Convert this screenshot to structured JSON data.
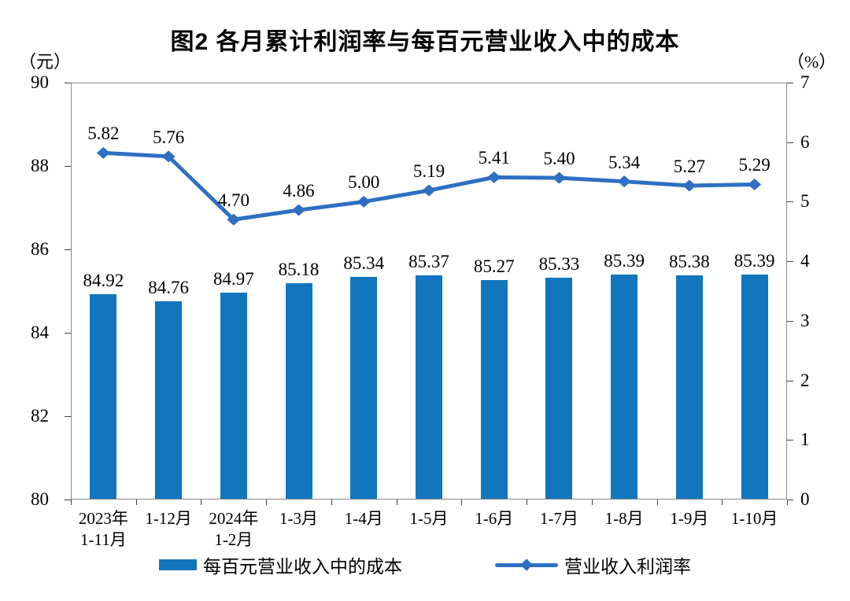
{
  "chart_data": {
    "type": "combo",
    "title": "图2 各月累计利润率与每百元营业收入中的成本",
    "categories": [
      [
        "2023年",
        "1-11月"
      ],
      [
        "1-12月"
      ],
      [
        "2024年",
        "1-2月"
      ],
      [
        "1-3月"
      ],
      [
        "1-4月"
      ],
      [
        "1-5月"
      ],
      [
        "1-6月"
      ],
      [
        "1-7月"
      ],
      [
        "1-8月"
      ],
      [
        "1-9月"
      ],
      [
        "1-10月"
      ]
    ],
    "series": [
      {
        "name": "每百元营业收入中的成本",
        "type": "bar",
        "axis": "left",
        "color": "#1176BE",
        "values": [
          84.92,
          84.76,
          84.97,
          85.18,
          85.34,
          85.37,
          85.27,
          85.33,
          85.39,
          85.38,
          85.39
        ],
        "labels": [
          "84.92",
          "84.76",
          "84.97",
          "85.18",
          "85.34",
          "85.37",
          "85.27",
          "85.33",
          "85.39",
          "85.38",
          "85.39"
        ]
      },
      {
        "name": "营业收入利润率",
        "type": "line",
        "axis": "right",
        "marker": "diamond",
        "color": "#2E6FC3",
        "values": [
          5.82,
          5.76,
          4.7,
          4.86,
          5.0,
          5.19,
          5.41,
          5.4,
          5.34,
          5.27,
          5.29
        ],
        "labels": [
          "5.82",
          "5.76",
          "4.70",
          "4.86",
          "5.00",
          "5.19",
          "5.41",
          "5.40",
          "5.34",
          "5.27",
          "5.29"
        ]
      }
    ],
    "left_axis": {
      "unit": "（元）",
      "min": 80,
      "max": 90,
      "step": 2,
      "ticks": [
        90,
        88,
        86,
        84,
        82,
        80
      ]
    },
    "right_axis": {
      "unit": "（%）",
      "min": 0,
      "max": 7,
      "step": 1,
      "ticks": [
        7,
        6,
        5,
        4,
        3,
        2,
        1,
        0
      ]
    },
    "grid": false,
    "legend_position": "bottom"
  }
}
